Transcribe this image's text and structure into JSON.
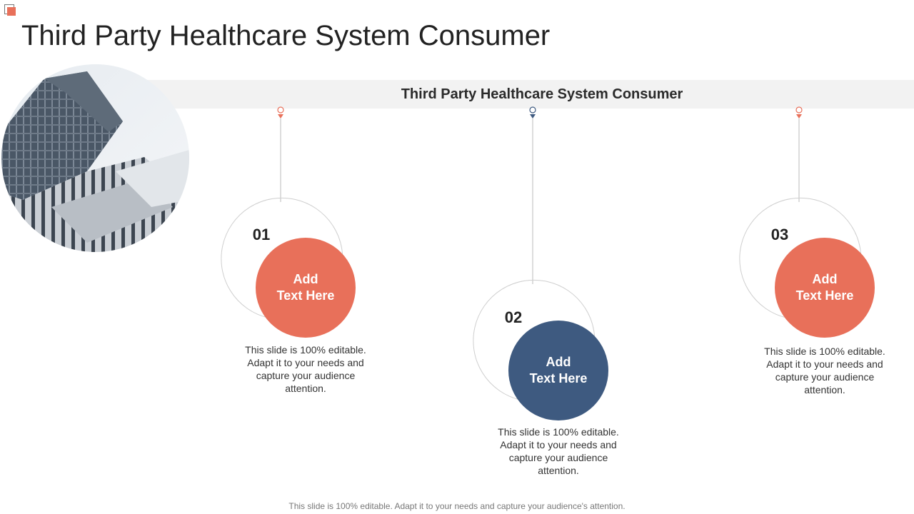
{
  "title": "Third Party Healthcare System Consumer",
  "banner": "Third Party Healthcare System Consumer",
  "colors": {
    "accent": "#e8705a",
    "secondary": "#3e5a80",
    "banner_bg": "#f2f2f2"
  },
  "items": [
    {
      "number": "01",
      "circle_text": "Add\nText Here",
      "description": "This slide is 100% editable. Adapt it to your needs and capture your audience attention."
    },
    {
      "number": "02",
      "circle_text": "Add\nText Here",
      "description": "This slide is 100% editable. Adapt it to your needs and capture your audience attention."
    },
    {
      "number": "03",
      "circle_text": "Add\nText Here",
      "description": "This slide is 100% editable. Adapt it to your needs and capture your audience attention."
    }
  ],
  "footer": "This slide is 100% editable. Adapt it to your needs and capture your audience's attention."
}
